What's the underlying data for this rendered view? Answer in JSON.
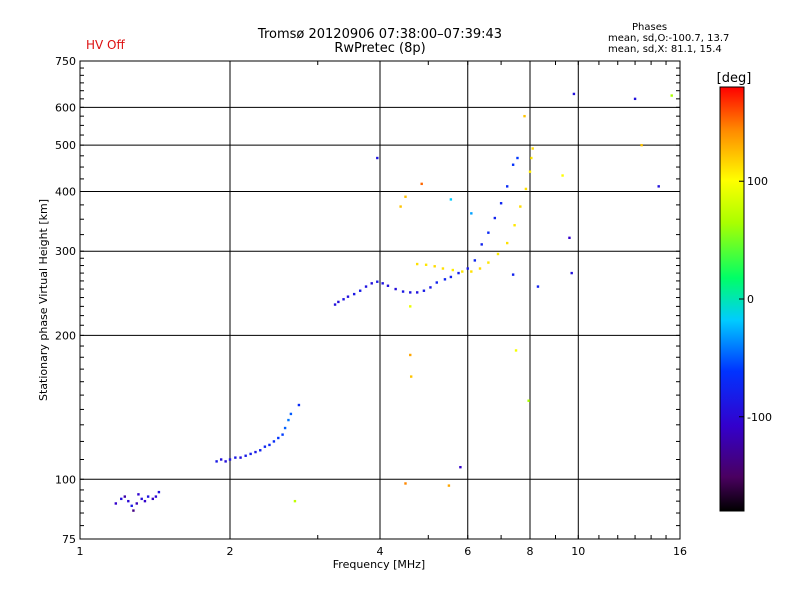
{
  "header": {
    "title_line1": "Tromsø 20120906 07:38:00–07:39:43",
    "title_line2": "RwPretec (8p)",
    "hv_status": "HV Off",
    "stats_heading": "Phases",
    "stats_o": "mean, sd,O:-100.7, 13.7",
    "stats_x": "mean, sd,X:  81.1, 15.4"
  },
  "colors": {
    "hv_status": "#dd1111",
    "grid": "#000000"
  },
  "chart_data": {
    "type": "scatter",
    "title": "Tromsø 20120906 07:38:00–07:39:43",
    "subtitle": "RwPretec (8p)",
    "xlabel": "Frequency [MHz]",
    "ylabel": "Stationary phase Virtual Height [km]",
    "x_scale": "log",
    "y_scale": "log",
    "xlim": [
      1,
      16
    ],
    "ylim": [
      75,
      750
    ],
    "x_ticks": [
      1,
      2,
      4,
      6,
      8,
      10,
      16
    ],
    "y_ticks": [
      75,
      100,
      200,
      300,
      400,
      500,
      600,
      750
    ],
    "grid": true,
    "colorbar": {
      "label": "[deg]",
      "range": [
        -180,
        180
      ],
      "tick_values": [
        100,
        0,
        -100
      ],
      "tick_labels": [
        "100",
        "0",
        "-100"
      ]
    },
    "series": [
      {
        "points": [
          [
            1.18,
            89,
            -120
          ],
          [
            1.21,
            91,
            -110
          ],
          [
            1.23,
            92,
            -130
          ],
          [
            1.25,
            90,
            -115
          ],
          [
            1.27,
            88,
            -105
          ],
          [
            1.28,
            86,
            -140
          ],
          [
            1.3,
            89,
            -125
          ],
          [
            1.31,
            93,
            -118
          ],
          [
            1.33,
            91,
            -112
          ],
          [
            1.35,
            90,
            -120
          ],
          [
            1.37,
            92,
            -108
          ],
          [
            1.4,
            91,
            -122
          ],
          [
            1.42,
            92,
            -116
          ],
          [
            1.44,
            94,
            -110
          ],
          [
            1.88,
            109,
            -105
          ],
          [
            1.92,
            110,
            -110
          ],
          [
            1.96,
            109,
            -112
          ],
          [
            2.0,
            110,
            -108
          ],
          [
            2.05,
            111,
            -106
          ],
          [
            2.1,
            111,
            -110
          ],
          [
            2.15,
            112,
            -104
          ],
          [
            2.2,
            113,
            -102
          ],
          [
            2.25,
            114,
            -106
          ],
          [
            2.3,
            115,
            -100
          ],
          [
            2.35,
            117,
            -98
          ],
          [
            2.4,
            118,
            -96
          ],
          [
            2.45,
            120,
            -94
          ],
          [
            2.5,
            122,
            -90
          ],
          [
            2.55,
            124,
            -86
          ],
          [
            2.58,
            128,
            -70
          ],
          [
            2.62,
            133,
            -60
          ],
          [
            2.65,
            137,
            -72
          ],
          [
            3.25,
            232,
            -110
          ],
          [
            3.3,
            235,
            -112
          ],
          [
            3.38,
            238,
            -108
          ],
          [
            3.45,
            241,
            -110
          ],
          [
            3.55,
            244,
            -106
          ],
          [
            3.65,
            248,
            -104
          ],
          [
            3.75,
            253,
            -108
          ],
          [
            3.85,
            257,
            -110
          ],
          [
            3.95,
            259,
            -105
          ],
          [
            4.05,
            257,
            -108
          ],
          [
            4.15,
            254,
            -110
          ],
          [
            4.3,
            250,
            -112
          ],
          [
            4.45,
            247,
            -106
          ],
          [
            4.6,
            246,
            -108
          ],
          [
            4.75,
            246,
            -110
          ],
          [
            4.9,
            248,
            -104
          ],
          [
            5.05,
            252,
            -106
          ],
          [
            5.2,
            258,
            -100
          ],
          [
            5.4,
            262,
            -98
          ],
          [
            5.55,
            265,
            -100
          ],
          [
            5.75,
            270,
            -102
          ],
          [
            6.0,
            276,
            -104
          ],
          [
            6.2,
            287,
            -98
          ],
          [
            6.4,
            310,
            -100
          ],
          [
            6.6,
            328,
            -96
          ],
          [
            6.8,
            352,
            -100
          ],
          [
            7.0,
            378,
            -98
          ],
          [
            7.2,
            410,
            -95
          ],
          [
            7.4,
            455,
            -92
          ],
          [
            7.55,
            470,
            -88
          ],
          [
            4.75,
            282,
            110
          ],
          [
            4.95,
            281,
            108
          ],
          [
            5.15,
            279,
            112
          ],
          [
            5.35,
            276,
            110
          ],
          [
            5.6,
            274,
            106
          ],
          [
            5.85,
            272,
            108
          ],
          [
            6.1,
            272,
            110
          ],
          [
            6.35,
            276,
            112
          ],
          [
            6.6,
            284,
            108
          ],
          [
            6.9,
            296,
            106
          ],
          [
            7.2,
            312,
            110
          ],
          [
            7.45,
            340,
            108
          ],
          [
            7.65,
            372,
            112
          ],
          [
            7.85,
            405,
            110
          ],
          [
            8.0,
            440,
            106
          ],
          [
            8.05,
            470,
            108
          ],
          [
            8.1,
            492,
            112
          ],
          [
            3.95,
            470,
            -108
          ],
          [
            4.4,
            372,
            120
          ],
          [
            4.5,
            390,
            122
          ],
          [
            4.85,
            415,
            150
          ],
          [
            5.55,
            385,
            -20
          ],
          [
            6.1,
            360,
            -40
          ],
          [
            7.4,
            268,
            -100
          ],
          [
            8.3,
            253,
            -100
          ],
          [
            9.3,
            432,
            100
          ],
          [
            9.6,
            320,
            -120
          ],
          [
            9.7,
            270,
            -110
          ],
          [
            9.8,
            640,
            -110
          ],
          [
            7.8,
            575,
            120
          ],
          [
            13.0,
            625,
            -110
          ],
          [
            13.4,
            500,
            120
          ],
          [
            14.5,
            410,
            -110
          ],
          [
            15.4,
            635,
            60
          ],
          [
            4.6,
            182,
            130
          ],
          [
            4.62,
            164,
            120
          ],
          [
            4.6,
            230,
            90
          ],
          [
            5.8,
            106,
            -120
          ],
          [
            4.5,
            98,
            140
          ],
          [
            5.5,
            97,
            130
          ],
          [
            2.7,
            90,
            70
          ],
          [
            2.75,
            143,
            -95
          ],
          [
            7.95,
            146,
            60
          ],
          [
            7.5,
            186,
            95
          ]
        ]
      }
    ]
  }
}
